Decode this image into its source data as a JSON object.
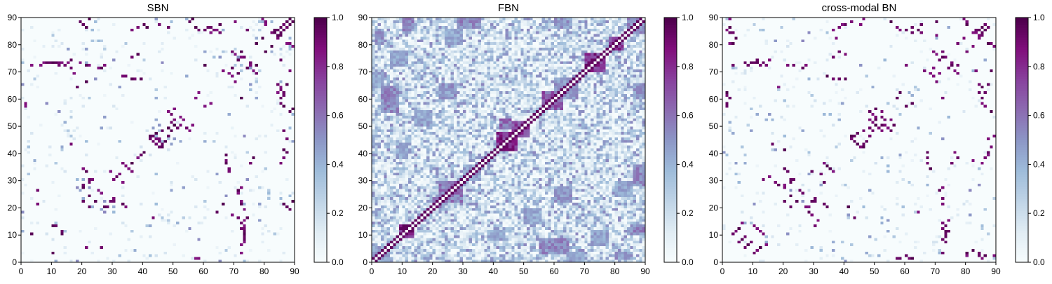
{
  "chart_data": [
    {
      "type": "heatmap",
      "title": "SBN",
      "xlim": [
        0,
        90
      ],
      "ylim": [
        0,
        90
      ],
      "xticks": [
        "0",
        "10",
        "20",
        "30",
        "40",
        "50",
        "60",
        "70",
        "80",
        "90"
      ],
      "yticks": [
        "0",
        "10",
        "20",
        "30",
        "40",
        "50",
        "60",
        "70",
        "80",
        "90"
      ],
      "matrix_size": 90,
      "colorbar": {
        "range": [
          0.0,
          1.0
        ],
        "ticks": [
          "0.0",
          "0.2",
          "0.4",
          "0.6",
          "0.8",
          "1.0"
        ]
      },
      "strong_cells": [
        [
          57,
          1
        ],
        [
          58,
          1
        ],
        [
          21,
          5
        ],
        [
          26,
          5
        ],
        [
          10,
          13
        ],
        [
          11,
          13
        ],
        [
          3,
          10
        ],
        [
          72,
          12
        ],
        [
          73,
          10
        ],
        [
          73,
          9
        ],
        [
          90,
          10
        ],
        [
          22,
          20
        ],
        [
          24,
          22
        ],
        [
          26,
          25
        ],
        [
          28,
          20
        ],
        [
          30,
          22
        ],
        [
          33,
          21
        ],
        [
          34,
          20
        ],
        [
          36,
          36
        ],
        [
          29,
          33
        ],
        [
          23,
          30
        ],
        [
          22,
          29
        ],
        [
          20,
          27
        ],
        [
          42,
          46
        ],
        [
          43,
          44
        ],
        [
          44,
          43
        ],
        [
          45,
          42
        ],
        [
          46,
          43
        ],
        [
          47,
          44
        ],
        [
          48,
          46
        ],
        [
          49,
          48
        ],
        [
          50,
          50
        ],
        [
          51,
          49
        ],
        [
          52,
          50
        ],
        [
          53,
          52
        ],
        [
          54,
          49
        ],
        [
          55,
          48
        ],
        [
          56,
          50
        ],
        [
          44,
          45
        ],
        [
          45,
          45
        ],
        [
          16,
          43
        ],
        [
          1,
          57
        ],
        [
          60,
          57
        ],
        [
          62,
          58
        ],
        [
          72,
          60
        ],
        [
          85,
          58
        ],
        [
          86,
          62
        ],
        [
          87,
          65
        ],
        [
          88,
          70
        ],
        [
          3,
          72
        ],
        [
          6,
          72
        ],
        [
          7,
          73
        ],
        [
          8,
          73
        ],
        [
          9,
          73
        ],
        [
          10,
          73
        ],
        [
          11,
          73
        ],
        [
          12,
          73
        ],
        [
          13,
          73
        ],
        [
          14,
          72
        ],
        [
          15,
          73
        ],
        [
          21,
          72
        ],
        [
          22,
          72
        ],
        [
          25,
          71
        ],
        [
          26,
          71
        ],
        [
          27,
          72
        ],
        [
          34,
          68
        ],
        [
          36,
          67
        ],
        [
          37,
          67
        ],
        [
          39,
          67
        ],
        [
          66,
          70
        ],
        [
          68,
          69
        ],
        [
          69,
          71
        ],
        [
          71,
          74
        ],
        [
          73,
          75
        ],
        [
          75,
          72
        ],
        [
          76,
          70
        ],
        [
          85,
          74
        ],
        [
          18,
          64
        ],
        [
          16,
          74
        ],
        [
          19,
          73
        ],
        [
          36,
          75
        ],
        [
          38,
          76
        ],
        [
          80,
          77
        ],
        [
          72,
          77
        ],
        [
          69,
          77
        ],
        [
          70,
          76
        ],
        [
          82,
          79
        ],
        [
          84,
          82
        ],
        [
          85,
          83
        ],
        [
          87,
          80
        ],
        [
          89,
          79
        ],
        [
          90,
          81
        ],
        [
          36,
          85
        ],
        [
          38,
          86
        ],
        [
          40,
          87
        ],
        [
          41,
          86
        ],
        [
          45,
          87
        ],
        [
          48,
          86
        ],
        [
          60,
          85
        ],
        [
          61,
          86
        ],
        [
          62,
          84
        ],
        [
          63,
          85
        ],
        [
          64,
          85
        ],
        [
          65,
          84
        ],
        [
          20,
          87
        ],
        [
          21,
          86
        ],
        [
          19,
          88
        ],
        [
          22,
          89
        ],
        [
          55,
          88
        ],
        [
          57,
          86
        ],
        [
          79,
          89
        ],
        [
          80,
          88
        ],
        [
          83,
          84
        ],
        [
          84,
          85
        ],
        [
          85,
          86
        ],
        [
          86,
          87
        ],
        [
          87,
          88
        ],
        [
          88,
          89
        ],
        [
          33,
          36
        ],
        [
          34,
          35
        ],
        [
          35,
          34
        ],
        [
          32,
          32
        ],
        [
          31,
          31
        ],
        [
          30,
          30
        ],
        [
          38,
          38
        ],
        [
          39,
          39
        ],
        [
          40,
          40
        ],
        [
          68,
          33
        ],
        [
          72,
          14
        ],
        [
          71,
          16
        ],
        [
          66,
          21
        ],
        [
          69,
          17
        ],
        [
          90,
          57
        ],
        [
          89,
          56
        ]
      ]
    },
    {
      "type": "heatmap",
      "title": "FBN",
      "xlim": [
        0,
        90
      ],
      "ylim": [
        0,
        90
      ],
      "xticks": [
        "0",
        "10",
        "20",
        "30",
        "40",
        "50",
        "60",
        "70",
        "80",
        "90"
      ],
      "yticks": [
        "0",
        "10",
        "20",
        "30",
        "40",
        "50",
        "60",
        "70",
        "80",
        "90"
      ],
      "matrix_size": 90,
      "colorbar": {
        "range": [
          0.0,
          1.0
        ],
        "ticks": [
          "0.0",
          "0.2",
          "0.4",
          "0.6",
          "0.8",
          "1.0"
        ]
      },
      "blocks": [
        [
          9,
          14,
          9,
          14,
          0.95
        ],
        [
          41,
          48,
          41,
          48,
          0.9
        ],
        [
          46,
          52,
          46,
          52,
          0.85
        ],
        [
          42,
          46,
          49,
          53,
          0.7
        ],
        [
          70,
          77,
          70,
          77,
          0.9
        ],
        [
          78,
          83,
          78,
          83,
          0.9
        ],
        [
          56,
          63,
          56,
          63,
          0.75
        ],
        [
          22,
          30,
          22,
          30,
          0.65
        ],
        [
          0,
          6,
          0,
          6,
          0.5
        ],
        [
          84,
          90,
          84,
          90,
          0.6
        ],
        [
          30,
          36,
          30,
          36,
          0.5
        ],
        [
          60,
          68,
          60,
          68,
          0.55
        ],
        [
          3,
          9,
          55,
          65,
          0.6
        ],
        [
          55,
          65,
          3,
          9,
          0.6
        ],
        [
          10,
          14,
          85,
          90,
          0.6
        ],
        [
          85,
          90,
          10,
          14,
          0.6
        ],
        [
          22,
          28,
          60,
          66,
          0.55
        ],
        [
          60,
          66,
          22,
          28,
          0.55
        ],
        [
          14,
          20,
          50,
          56,
          0.5
        ],
        [
          50,
          56,
          14,
          20,
          0.5
        ],
        [
          86,
          90,
          28,
          36,
          0.6
        ],
        [
          28,
          36,
          86,
          90,
          0.6
        ],
        [
          72,
          78,
          6,
          12,
          0.5
        ],
        [
          6,
          12,
          72,
          78,
          0.5
        ],
        [
          1,
          4,
          80,
          86,
          0.55
        ],
        [
          80,
          86,
          1,
          4,
          0.55
        ],
        [
          20,
          24,
          20,
          24,
          0.6
        ],
        [
          64,
          70,
          0,
          4,
          0.5
        ],
        [
          0,
          4,
          64,
          70,
          0.5
        ],
        [
          24,
          30,
          80,
          86,
          0.5
        ],
        [
          80,
          86,
          24,
          30,
          0.5
        ],
        [
          38,
          44,
          8,
          12,
          0.5
        ],
        [
          8,
          12,
          38,
          44,
          0.5
        ],
        [
          86,
          90,
          60,
          66,
          0.55
        ],
        [
          60,
          66,
          86,
          90,
          0.55
        ]
      ]
    },
    {
      "type": "heatmap",
      "title": "cross-modal BN",
      "xlim": [
        0,
        90
      ],
      "ylim": [
        0,
        90
      ],
      "xticks": [
        "0",
        "10",
        "20",
        "30",
        "40",
        "50",
        "60",
        "70",
        "80",
        "90"
      ],
      "yticks": [
        "0",
        "10",
        "20",
        "30",
        "40",
        "50",
        "60",
        "70",
        "80",
        "90"
      ],
      "matrix_size": 90,
      "colorbar": {
        "range": [
          0.0,
          1.0
        ],
        "ticks": [
          "0.0",
          "0.2",
          "0.4",
          "0.6",
          "0.8",
          "1.0"
        ]
      },
      "strong_cells": [
        [
          57,
          1
        ],
        [
          58,
          1
        ],
        [
          60,
          2
        ],
        [
          61,
          1
        ],
        [
          80,
          2
        ],
        [
          84,
          3
        ],
        [
          85,
          1
        ],
        [
          86,
          2
        ],
        [
          72,
          12
        ],
        [
          73,
          9
        ],
        [
          73,
          13
        ],
        [
          74,
          11
        ],
        [
          84,
          2
        ],
        [
          90,
          10
        ],
        [
          10,
          13
        ],
        [
          11,
          12
        ],
        [
          3,
          10
        ],
        [
          5,
          12
        ],
        [
          6,
          14
        ],
        [
          12,
          5
        ],
        [
          11,
          4
        ],
        [
          8,
          6
        ],
        [
          7,
          5
        ],
        [
          9,
          7
        ],
        [
          22,
          20
        ],
        [
          24,
          22
        ],
        [
          26,
          25
        ],
        [
          28,
          20
        ],
        [
          30,
          22
        ],
        [
          33,
          21
        ],
        [
          34,
          20
        ],
        [
          30,
          13
        ],
        [
          31,
          15
        ],
        [
          29,
          33
        ],
        [
          23,
          30
        ],
        [
          22,
          29
        ],
        [
          20,
          27
        ],
        [
          17,
          29
        ],
        [
          18,
          28
        ],
        [
          33,
          36
        ],
        [
          34,
          35
        ],
        [
          35,
          34
        ],
        [
          32,
          32
        ],
        [
          42,
          46
        ],
        [
          43,
          44
        ],
        [
          44,
          43
        ],
        [
          45,
          42
        ],
        [
          46,
          43
        ],
        [
          47,
          44
        ],
        [
          48,
          46
        ],
        [
          49,
          48
        ],
        [
          50,
          50
        ],
        [
          51,
          49
        ],
        [
          52,
          50
        ],
        [
          53,
          52
        ],
        [
          54,
          49
        ],
        [
          55,
          48
        ],
        [
          56,
          50
        ],
        [
          48,
          52
        ],
        [
          50,
          53
        ],
        [
          52,
          55
        ],
        [
          16,
          43
        ],
        [
          20,
          41
        ],
        [
          82,
          37
        ],
        [
          87,
          39
        ],
        [
          88,
          42
        ],
        [
          89,
          46
        ],
        [
          1,
          57
        ],
        [
          60,
          57
        ],
        [
          62,
          58
        ],
        [
          72,
          60
        ],
        [
          85,
          58
        ],
        [
          86,
          62
        ],
        [
          87,
          65
        ],
        [
          88,
          70
        ],
        [
          90,
          52
        ],
        [
          3,
          72
        ],
        [
          7,
          73
        ],
        [
          8,
          72
        ],
        [
          10,
          73
        ],
        [
          11,
          73
        ],
        [
          14,
          72
        ],
        [
          21,
          72
        ],
        [
          23,
          72
        ],
        [
          26,
          71
        ],
        [
          27,
          72
        ],
        [
          34,
          68
        ],
        [
          36,
          67
        ],
        [
          38,
          67
        ],
        [
          40,
          67
        ],
        [
          66,
          70
        ],
        [
          68,
          69
        ],
        [
          69,
          71
        ],
        [
          71,
          74
        ],
        [
          73,
          75
        ],
        [
          75,
          72
        ],
        [
          76,
          70
        ],
        [
          83,
          70
        ],
        [
          18,
          64
        ],
        [
          15,
          74
        ],
        [
          36,
          75
        ],
        [
          38,
          77
        ],
        [
          40,
          76
        ],
        [
          72,
          77
        ],
        [
          69,
          77
        ],
        [
          80,
          77
        ],
        [
          84,
          82
        ],
        [
          85,
          83
        ],
        [
          87,
          80
        ],
        [
          89,
          79
        ],
        [
          82,
          79
        ],
        [
          36,
          85
        ],
        [
          38,
          86
        ],
        [
          40,
          87
        ],
        [
          45,
          87
        ],
        [
          60,
          85
        ],
        [
          62,
          84
        ],
        [
          64,
          85
        ],
        [
          65,
          84
        ],
        [
          55,
          88
        ],
        [
          57,
          86
        ],
        [
          79,
          89
        ],
        [
          80,
          88
        ],
        [
          83,
          84
        ],
        [
          84,
          85
        ],
        [
          85,
          86
        ],
        [
          86,
          87
        ],
        [
          2,
          89
        ],
        [
          3,
          80
        ],
        [
          4,
          82
        ],
        [
          1,
          62
        ]
      ]
    }
  ]
}
